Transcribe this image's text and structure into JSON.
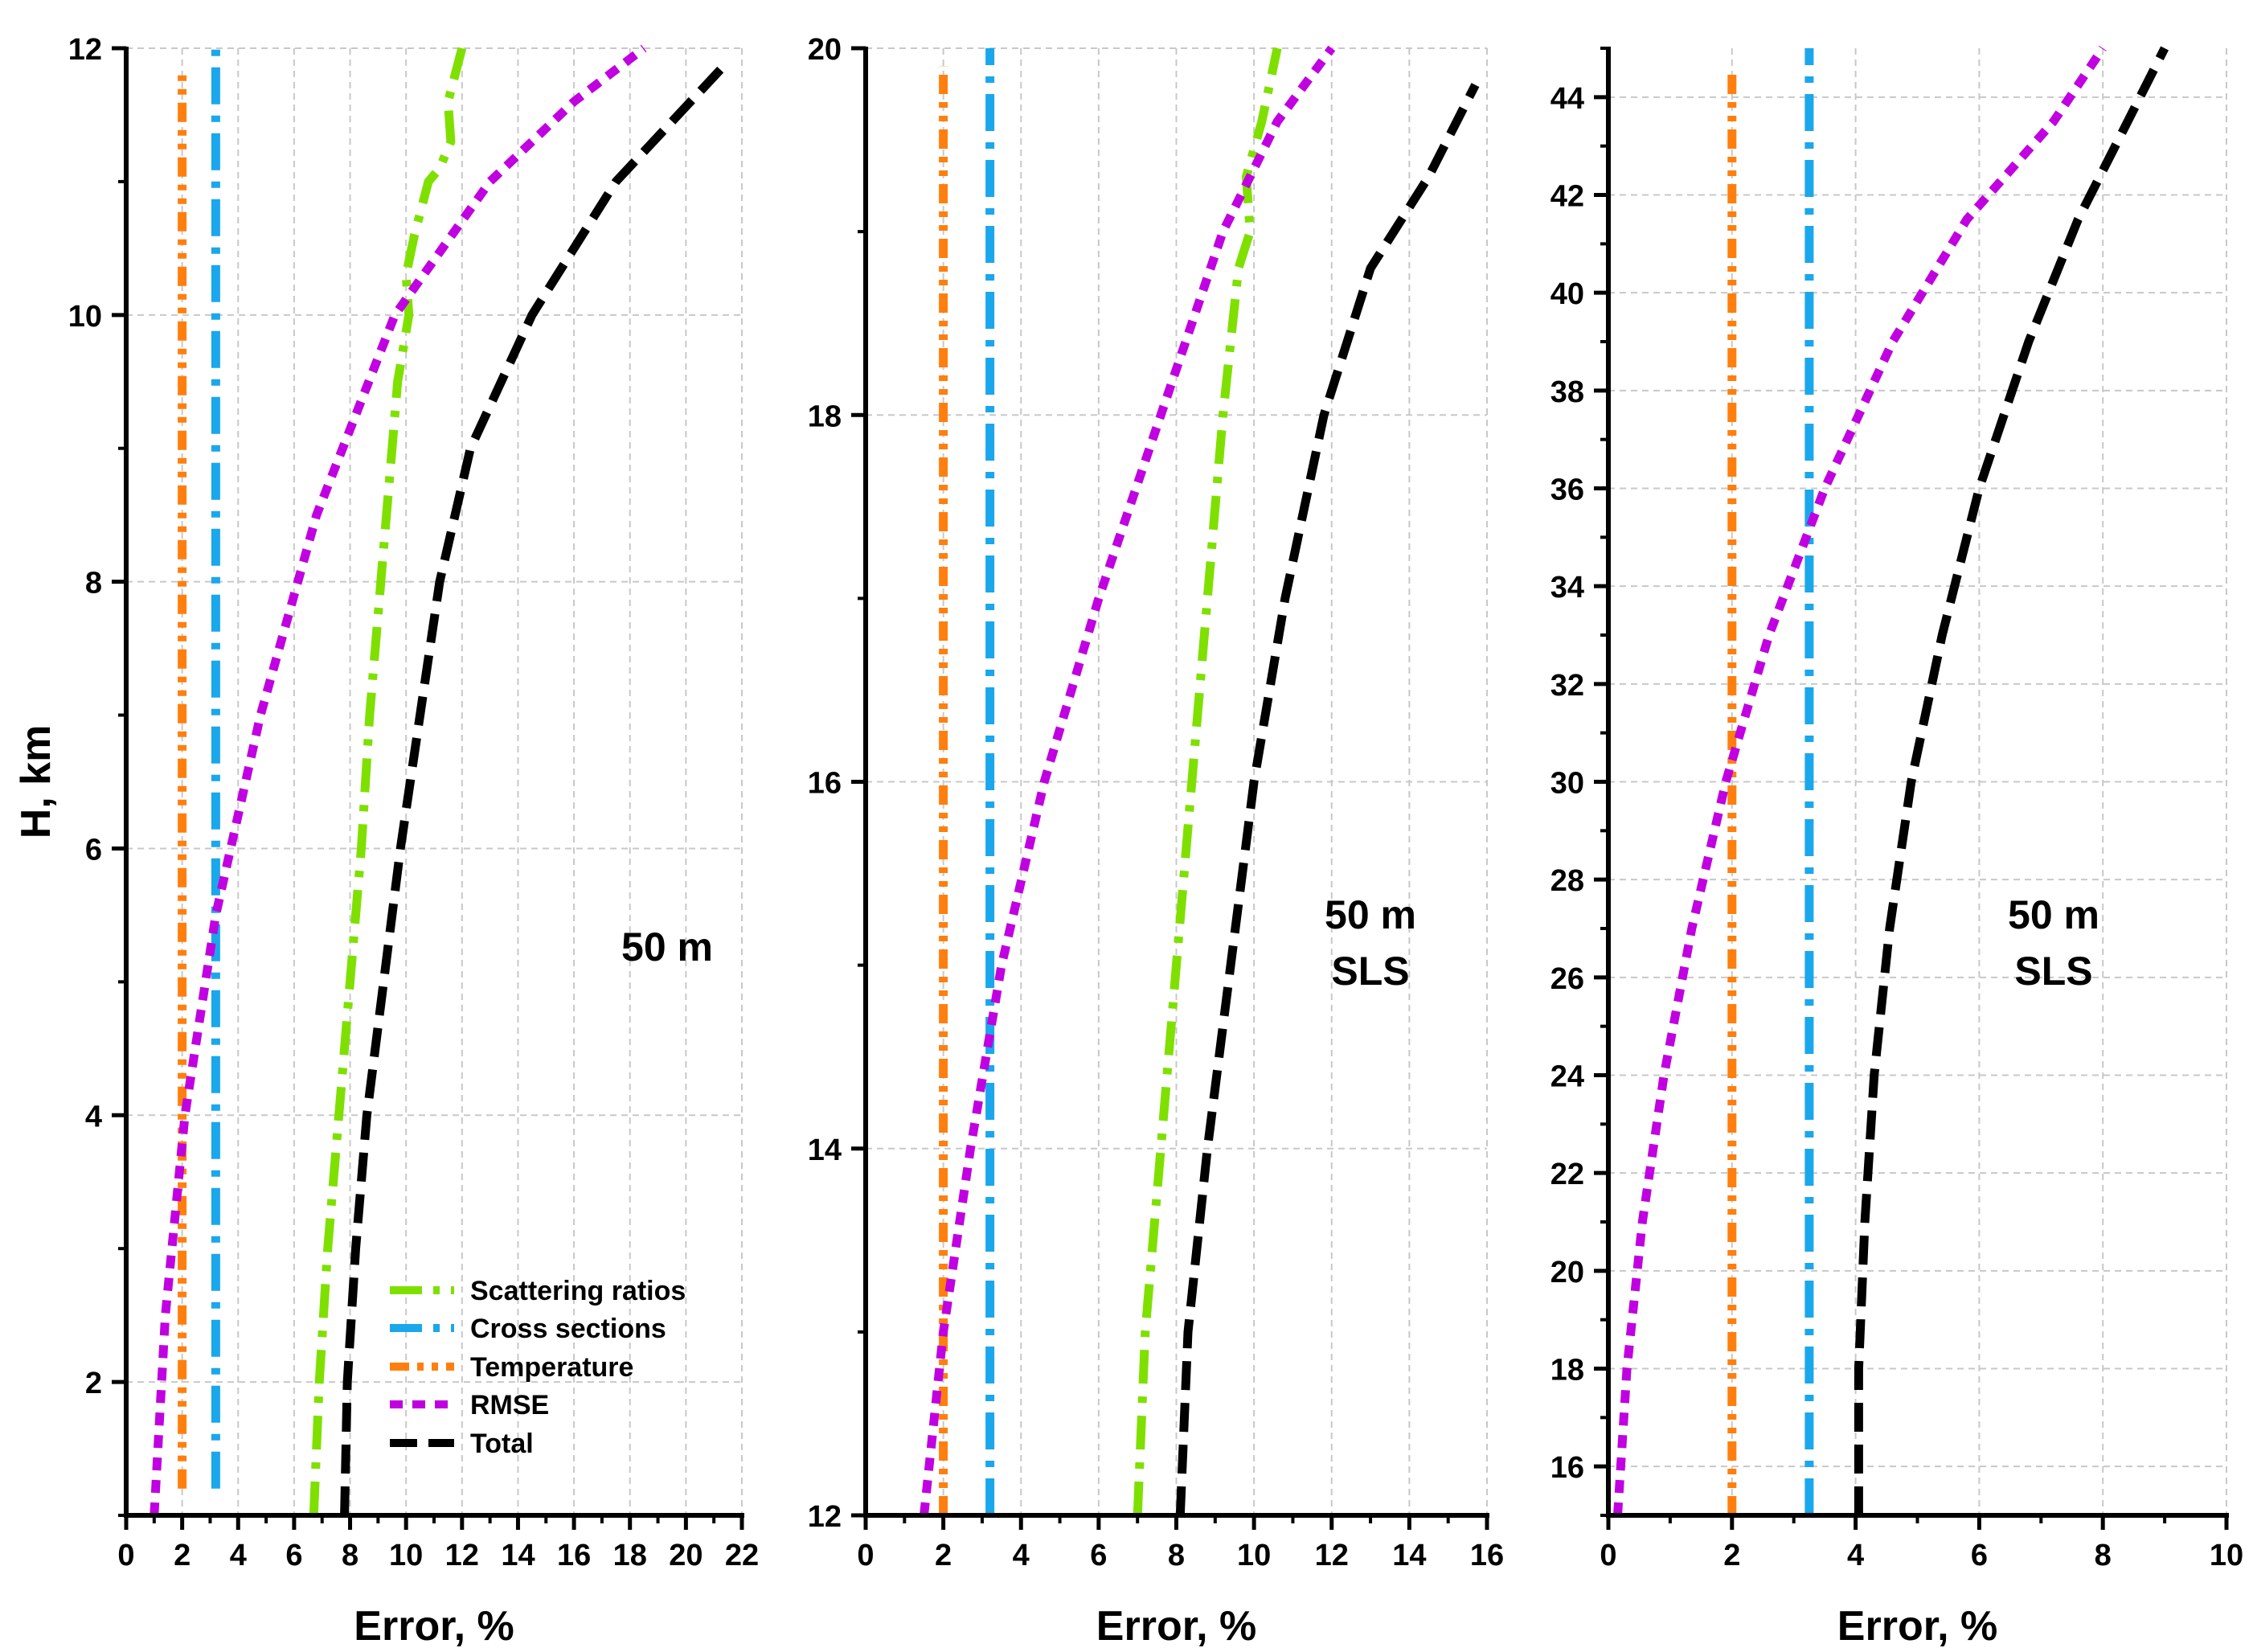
{
  "colors": {
    "scattering": "#7FE000",
    "cross": "#1AA7EC",
    "temperature": "#FF7F0E",
    "rmse": "#C000E0",
    "total": "#000000",
    "grid": "#c8c8c8"
  },
  "legend": {
    "scattering": "Scattering ratios",
    "cross": "Cross sections",
    "temperature": "Temperature",
    "rmse": "RMSE",
    "total": "Total"
  },
  "chart_data": [
    {
      "type": "line",
      "ylabel": "H, km",
      "xlabel": "Error, %",
      "xlim": [
        0,
        22
      ],
      "ylim": [
        1,
        12
      ],
      "xticks": [
        0,
        2,
        4,
        6,
        8,
        10,
        12,
        14,
        16,
        18,
        20,
        22
      ],
      "yticks": [
        2,
        4,
        6,
        8,
        10,
        12
      ],
      "annotation": [
        "50 m"
      ],
      "series": [
        {
          "key": "scattering",
          "name": "Scattering ratios",
          "x": [
            6.7,
            6.9,
            7.2,
            7.6,
            8.0,
            8.4,
            8.7,
            9.1,
            9.5,
            9.7,
            10.1,
            10.0,
            10.3,
            10.8,
            11.2,
            11.6,
            11.5,
            12.0
          ],
          "y": [
            1,
            2,
            3,
            4,
            5,
            6,
            7,
            8,
            9,
            9.5,
            10,
            10.3,
            10.6,
            11.0,
            11.1,
            11.3,
            11.6,
            12
          ]
        },
        {
          "key": "cross",
          "name": "Cross sections",
          "x": [
            3.2,
            3.2
          ],
          "y": [
            1.2,
            12
          ]
        },
        {
          "key": "temperature",
          "name": "Temperature",
          "x": [
            2.0,
            2.0
          ],
          "y": [
            1.2,
            11.8
          ]
        },
        {
          "key": "rmse",
          "name": "RMSE",
          "x": [
            1.0,
            1.4,
            2.1,
            3.2,
            4.8,
            6.8,
            9.6,
            13.0,
            16.0,
            18.5
          ],
          "y": [
            1,
            2.5,
            4.0,
            5.5,
            7.0,
            8.5,
            10.0,
            11.0,
            11.6,
            12
          ]
        },
        {
          "key": "total",
          "name": "Total",
          "x": [
            7.8,
            7.9,
            8.2,
            8.6,
            9.2,
            9.8,
            10.5,
            11.2,
            12.3,
            14.5,
            17.5,
            21.5
          ],
          "y": [
            1,
            2,
            3,
            4,
            5,
            6,
            7,
            8,
            9,
            10,
            11,
            11.9
          ]
        }
      ]
    },
    {
      "type": "line",
      "xlabel": "Error, %",
      "xlim": [
        0,
        16
      ],
      "ylim": [
        12,
        20
      ],
      "xticks": [
        0,
        2,
        4,
        6,
        8,
        10,
        12,
        14,
        16
      ],
      "yticks": [
        12,
        14,
        16,
        18,
        20
      ],
      "annotation": [
        "50 m",
        "SLS"
      ],
      "series": [
        {
          "key": "scattering",
          "name": "Scattering ratios",
          "x": [
            7.0,
            7.2,
            7.6,
            8.0,
            8.4,
            8.8,
            9.2,
            9.6,
            9.9,
            9.8,
            10.2,
            10.6
          ],
          "y": [
            12,
            13,
            14,
            15,
            16,
            17,
            18,
            18.8,
            19.0,
            19.3,
            19.6,
            20
          ]
        },
        {
          "key": "cross",
          "name": "Cross sections",
          "x": [
            3.2,
            3.2
          ],
          "y": [
            12,
            20
          ]
        },
        {
          "key": "temperature",
          "name": "Temperature",
          "x": [
            2.0,
            2.0
          ],
          "y": [
            12,
            19.9
          ]
        },
        {
          "key": "rmse",
          "name": "RMSE",
          "x": [
            1.5,
            2.0,
            2.7,
            3.5,
            4.6,
            6.0,
            7.6,
            9.2,
            10.6,
            12.0
          ],
          "y": [
            12,
            13,
            14,
            15,
            16,
            17,
            18,
            19,
            19.6,
            20
          ]
        },
        {
          "key": "total",
          "name": "Total",
          "x": [
            8.1,
            8.3,
            8.8,
            9.4,
            10.0,
            10.8,
            11.8,
            13.0,
            14.5,
            15.7
          ],
          "y": [
            12,
            13,
            14,
            15,
            16,
            17,
            18,
            18.8,
            19.3,
            19.8
          ]
        }
      ]
    },
    {
      "type": "line",
      "xlabel": "Error, %",
      "xlim": [
        0,
        10
      ],
      "ylim": [
        15,
        45
      ],
      "xticks": [
        0,
        2,
        4,
        6,
        8,
        10
      ],
      "yticks": [
        16,
        18,
        20,
        22,
        24,
        26,
        28,
        30,
        32,
        34,
        36,
        38,
        40,
        42,
        44
      ],
      "annotation": [
        "50 m",
        "SLS"
      ],
      "series": [
        {
          "key": "cross",
          "name": "Cross sections",
          "x": [
            3.25,
            3.25
          ],
          "y": [
            15,
            45
          ]
        },
        {
          "key": "temperature",
          "name": "Temperature",
          "x": [
            2.0,
            2.0
          ],
          "y": [
            15,
            44.5
          ]
        },
        {
          "key": "rmse",
          "name": "RMSE",
          "x": [
            0.15,
            0.3,
            0.55,
            0.9,
            1.35,
            1.9,
            2.6,
            3.5,
            4.6,
            5.8,
            7.2,
            8.0
          ],
          "y": [
            15,
            18,
            21,
            24,
            27,
            30,
            33,
            36,
            39,
            41.5,
            43.5,
            45
          ]
        },
        {
          "key": "total",
          "name": "Total",
          "x": [
            4.05,
            4.05,
            4.15,
            4.3,
            4.55,
            4.9,
            5.4,
            6.0,
            6.8,
            7.6,
            8.4,
            9.0
          ],
          "y": [
            15,
            18,
            21,
            24,
            27,
            30,
            33,
            36,
            39,
            41.5,
            43.5,
            45
          ]
        }
      ]
    }
  ]
}
